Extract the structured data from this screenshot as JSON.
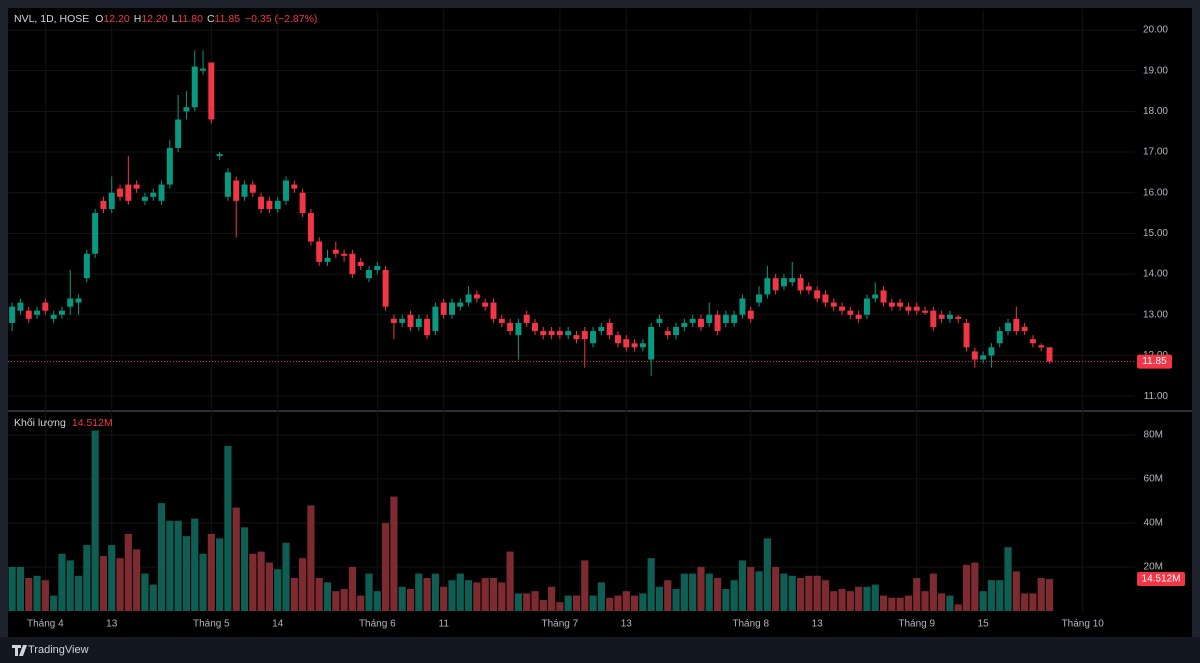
{
  "chart_data": {
    "type": "candlestick",
    "legend": {
      "symbol": "NVL, 1D, HOSE",
      "fields": [
        {
          "key": "O",
          "value": "12.20"
        },
        {
          "key": "H",
          "value": "12.20"
        },
        {
          "key": "L",
          "value": "11.80"
        },
        {
          "key": "C",
          "value": "11.85"
        }
      ],
      "change": "−0.35 (−2.87%)"
    },
    "last_price_label": "11.85",
    "up_color": "#089981",
    "down_color": "#f23645",
    "xlim": [
      -0.5,
      135.3
    ],
    "xticks": [
      {
        "value": 4,
        "label": "Tháng 4"
      },
      {
        "value": 12,
        "label": "13"
      },
      {
        "value": 24,
        "label": "Tháng 5"
      },
      {
        "value": 32,
        "label": "14"
      },
      {
        "value": 44,
        "label": "Tháng 6"
      },
      {
        "value": 52,
        "label": "11"
      },
      {
        "value": 66,
        "label": "Tháng 7"
      },
      {
        "value": 74,
        "label": "13"
      },
      {
        "value": 89,
        "label": "Tháng 8"
      },
      {
        "value": 97,
        "label": "13"
      },
      {
        "value": 109,
        "label": "Tháng 9"
      },
      {
        "value": 117,
        "label": "15"
      },
      {
        "value": 129,
        "label": "Tháng 10"
      }
    ],
    "ylim": [
      10.66,
      20.49
    ],
    "yticks": [
      {
        "value": 11,
        "label": "11.00"
      },
      {
        "value": 12,
        "label": "12.00"
      },
      {
        "value": 13,
        "label": "13.00"
      },
      {
        "value": 14,
        "label": "14.00"
      },
      {
        "value": 15,
        "label": "15.00"
      },
      {
        "value": 16,
        "label": "16.00"
      },
      {
        "value": 17,
        "label": "17.00"
      },
      {
        "value": 18,
        "label": "18.00"
      },
      {
        "value": 19,
        "label": "19.00"
      },
      {
        "value": 20,
        "label": "20.00"
      }
    ],
    "grid": true,
    "open": [
      12.8,
      13.1,
      13.1,
      13.0,
      13.3,
      12.9,
      13.0,
      13.2,
      13.3,
      13.9,
      14.5,
      15.8,
      15.6,
      16.1,
      16.2,
      16.2,
      15.8,
      15.9,
      15.8,
      16.2,
      17.1,
      18.0,
      18.1,
      19.0,
      19.2,
      16.9,
      15.9,
      16.3,
      15.9,
      16.2,
      15.9,
      15.8,
      15.6,
      15.8,
      16.2,
      16.0,
      15.5,
      14.8,
      14.3,
      14.6,
      14.5,
      14.5,
      14.3,
      13.9,
      14.1,
      14.1,
      12.9,
      12.8,
      13.0,
      12.7,
      12.9,
      12.6,
      13.3,
      13.0,
      13.2,
      13.3,
      13.5,
      13.3,
      13.3,
      12.9,
      12.8,
      12.5,
      13.0,
      12.8,
      12.6,
      12.6,
      12.6,
      12.5,
      12.5,
      12.6,
      12.3,
      12.6,
      12.8,
      12.5,
      12.4,
      12.3,
      12.2,
      11.9,
      12.8,
      12.6,
      12.5,
      12.7,
      12.8,
      12.9,
      12.8,
      13.0,
      12.8,
      12.8,
      13.0,
      13.1,
      13.3,
      13.5,
      13.9,
      13.7,
      13.8,
      13.9,
      13.7,
      13.6,
      13.5,
      13.3,
      13.2,
      13.1,
      13.0,
      13.0,
      13.4,
      13.6,
      13.3,
      13.3,
      13.2,
      13.2,
      13.1,
      13.1,
      13.0,
      12.9,
      12.95,
      12.8,
      12.1,
      11.9,
      12.0,
      12.3,
      12.6,
      12.9,
      12.7,
      12.4,
      12.25,
      12.2
    ],
    "high": [
      13.3,
      13.4,
      13.2,
      13.2,
      13.4,
      13.1,
      13.2,
      14.1,
      13.5,
      14.6,
      15.6,
      15.9,
      16.4,
      16.2,
      16.9,
      16.3,
      16.0,
      16.1,
      16.3,
      17.3,
      18.4,
      18.5,
      19.5,
      19.5,
      19.2,
      17.0,
      16.6,
      16.4,
      16.3,
      16.3,
      16.0,
      15.9,
      15.9,
      16.4,
      16.3,
      16.1,
      15.6,
      14.9,
      14.6,
      14.8,
      14.6,
      14.6,
      14.4,
      14.2,
      14.3,
      14.2,
      13.0,
      13.0,
      13.1,
      13.0,
      13.0,
      13.3,
      13.4,
      13.4,
      13.4,
      13.7,
      13.6,
      13.4,
      13.4,
      13.0,
      12.9,
      12.9,
      13.1,
      12.9,
      12.7,
      12.7,
      12.7,
      12.7,
      12.6,
      12.7,
      12.7,
      12.8,
      12.9,
      12.6,
      12.5,
      12.4,
      12.4,
      12.8,
      13.0,
      12.7,
      12.8,
      12.9,
      13.0,
      13.0,
      13.3,
      13.1,
      13.1,
      13.1,
      13.5,
      13.2,
      13.7,
      14.2,
      14.0,
      14.0,
      14.3,
      14.0,
      13.8,
      13.7,
      13.6,
      13.4,
      13.3,
      13.2,
      13.1,
      13.5,
      13.8,
      13.7,
      13.4,
      13.4,
      13.3,
      13.3,
      13.2,
      13.2,
      13.1,
      13.1,
      13.0,
      12.9,
      12.2,
      12.1,
      12.3,
      12.7,
      12.9,
      13.2,
      12.8,
      12.5,
      12.3,
      12.2
    ],
    "low": [
      12.6,
      13.0,
      12.8,
      12.9,
      13.0,
      12.8,
      12.9,
      13.0,
      13.0,
      13.8,
      14.4,
      15.5,
      15.5,
      15.8,
      15.7,
      16.0,
      15.7,
      15.8,
      15.7,
      16.1,
      17.0,
      17.8,
      18.0,
      18.9,
      17.7,
      16.8,
      15.8,
      14.9,
      15.8,
      15.9,
      15.5,
      15.5,
      15.5,
      15.7,
      16.0,
      15.4,
      14.7,
      14.2,
      14.2,
      14.4,
      14.3,
      13.9,
      14.1,
      13.8,
      14.0,
      13.1,
      12.4,
      12.7,
      12.6,
      12.6,
      12.4,
      12.5,
      12.9,
      12.9,
      13.1,
      13.2,
      13.3,
      13.1,
      12.8,
      12.7,
      12.5,
      11.9,
      12.7,
      12.5,
      12.4,
      12.4,
      12.4,
      12.4,
      12.3,
      11.7,
      12.2,
      12.5,
      12.4,
      12.2,
      12.1,
      12.1,
      12.1,
      11.5,
      12.7,
      12.4,
      12.4,
      12.6,
      12.7,
      12.6,
      12.7,
      12.5,
      12.7,
      12.7,
      12.9,
      12.8,
      13.2,
      13.4,
      13.5,
      13.6,
      13.7,
      13.5,
      13.5,
      13.3,
      13.2,
      13.1,
      13.0,
      12.9,
      12.8,
      12.9,
      13.3,
      13.2,
      13.1,
      13.1,
      13.0,
      13.0,
      13.0,
      12.6,
      12.8,
      12.8,
      12.8,
      12.1,
      11.7,
      11.8,
      11.7,
      12.2,
      12.5,
      12.5,
      12.5,
      12.2,
      12.1,
      11.8
    ],
    "close": [
      13.2,
      13.3,
      12.9,
      13.1,
      13.1,
      13.0,
      13.1,
      13.4,
      13.4,
      14.5,
      15.5,
      15.6,
      16.0,
      15.9,
      15.8,
      16.1,
      15.9,
      16.0,
      16.2,
      17.1,
      17.8,
      18.1,
      19.1,
      19.05,
      17.8,
      16.95,
      16.5,
      15.8,
      16.2,
      16.0,
      15.6,
      15.6,
      15.8,
      16.3,
      16.1,
      15.5,
      14.8,
      14.3,
      14.4,
      14.5,
      14.45,
      14.0,
      14.2,
      14.1,
      14.2,
      13.2,
      12.8,
      12.9,
      12.7,
      12.9,
      12.5,
      13.2,
      13.0,
      13.3,
      13.3,
      13.5,
      13.4,
      13.2,
      12.9,
      12.8,
      12.6,
      12.8,
      12.8,
      12.6,
      12.5,
      12.5,
      12.5,
      12.6,
      12.4,
      12.4,
      12.6,
      12.7,
      12.5,
      12.3,
      12.2,
      12.2,
      12.3,
      12.7,
      12.9,
      12.5,
      12.7,
      12.8,
      12.9,
      12.7,
      13.0,
      12.6,
      13.0,
      13.0,
      13.4,
      12.9,
      13.5,
      13.9,
      13.6,
      13.9,
      13.9,
      13.6,
      13.6,
      13.4,
      13.3,
      13.2,
      13.1,
      13.0,
      12.9,
      13.4,
      13.5,
      13.3,
      13.2,
      13.2,
      13.1,
      13.1,
      13.05,
      12.7,
      12.9,
      13.0,
      12.9,
      12.2,
      11.9,
      12.0,
      12.2,
      12.6,
      12.8,
      12.6,
      12.6,
      12.3,
      12.2,
      11.85
    ],
    "volume": {
      "name": "Khối lượng",
      "last_value_label": "14.512M",
      "up_color": "#0f5e54",
      "down_color": "#7e2a31",
      "ylim": [
        0,
        89.5
      ],
      "yticks": [
        {
          "value": 20,
          "label": "20M"
        },
        {
          "value": 40,
          "label": "40M"
        },
        {
          "value": 60,
          "label": "60M"
        },
        {
          "value": 80,
          "label": "80M"
        }
      ],
      "values": [
        20,
        20,
        15,
        16,
        14,
        7,
        26,
        23,
        16,
        30,
        82,
        25,
        30,
        24,
        35,
        28,
        17,
        12,
        49,
        41,
        41,
        34,
        42,
        26,
        35,
        33,
        75,
        47,
        38,
        26,
        27,
        22,
        19,
        31,
        15,
        24,
        48,
        15,
        13,
        9,
        10,
        20,
        7,
        17,
        9,
        40,
        52,
        11,
        10,
        17,
        15,
        17,
        11,
        14,
        17,
        14,
        13,
        15,
        15,
        13,
        27,
        8,
        8,
        9,
        5,
        11,
        4,
        7,
        7,
        23,
        7,
        13,
        6,
        7,
        9,
        7,
        8,
        24,
        11,
        14,
        10,
        17,
        17,
        20,
        17,
        15,
        10,
        14,
        23,
        20,
        18,
        33,
        20,
        17,
        16,
        15,
        16,
        16,
        14,
        9,
        10,
        9,
        11,
        11,
        12,
        7,
        6,
        6,
        7,
        15,
        9,
        17,
        8,
        7,
        3,
        21,
        22,
        9,
        14,
        14,
        29,
        18,
        8,
        8,
        15,
        14.512
      ]
    },
    "branding": "TradingView"
  }
}
